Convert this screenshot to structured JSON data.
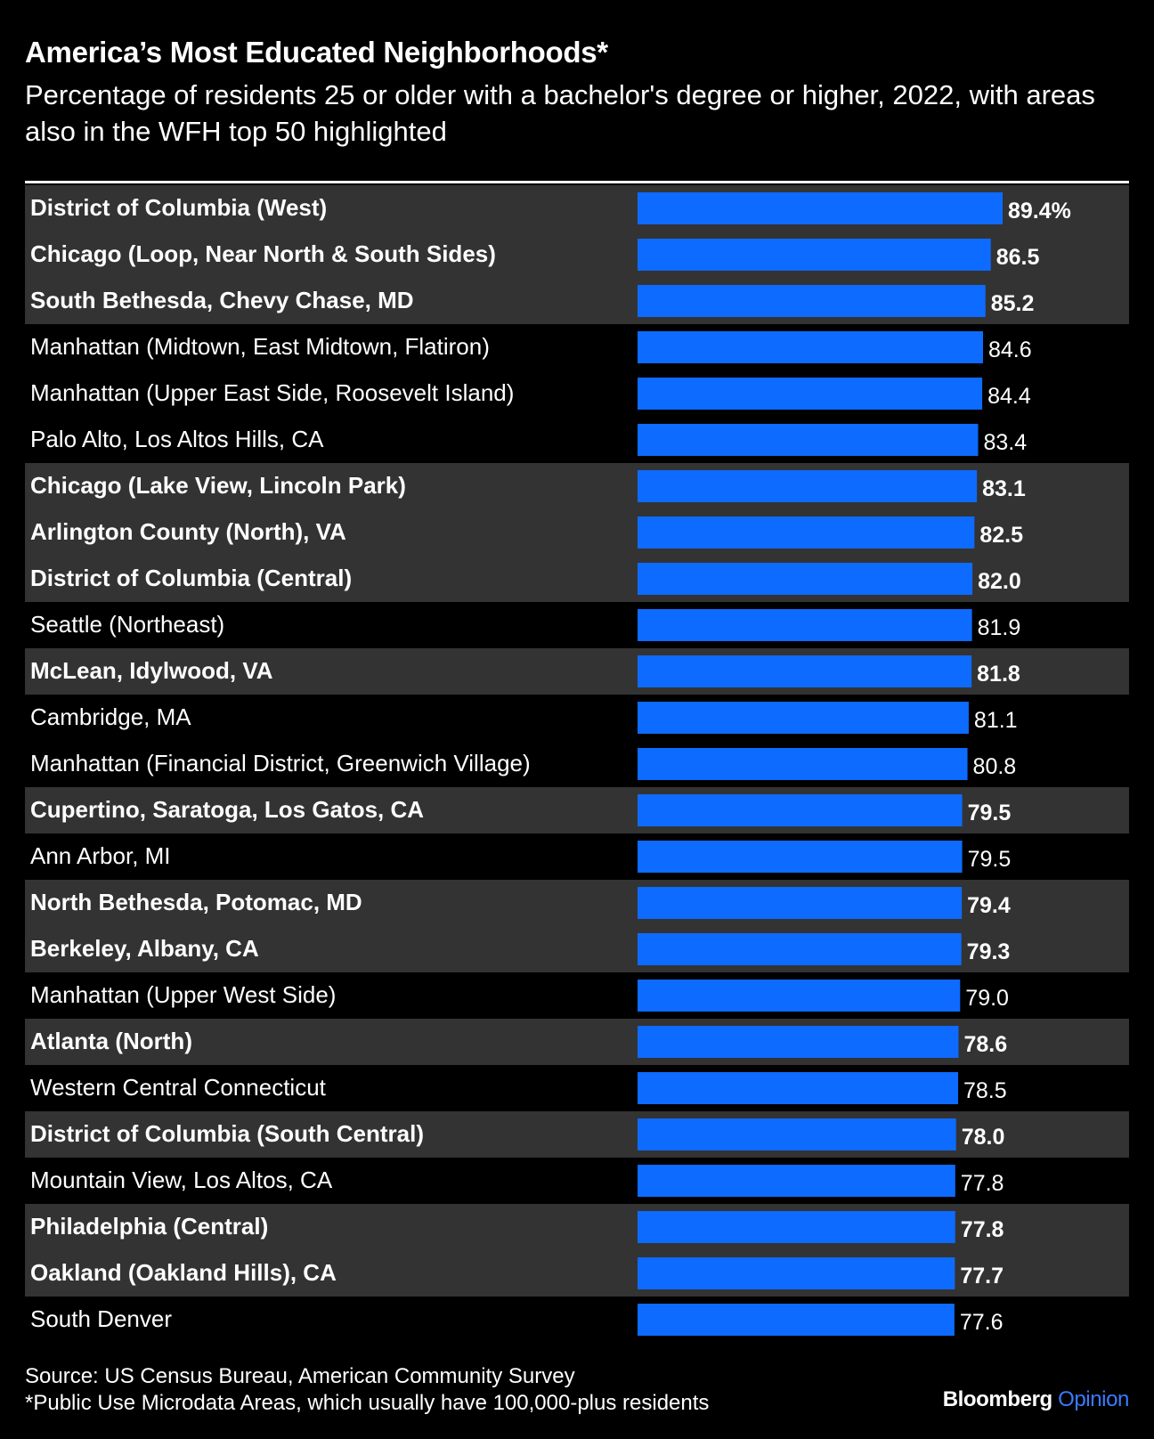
{
  "header": {
    "title": "America’s Most Educated Neighborhoods*",
    "subtitle": "Percentage of residents 25 or older with a bachelor's degree or higher, 2022, with areas also in the WFH top 50 highlighted"
  },
  "footer": {
    "source": "Source: US Census Bureau, American Community Survey",
    "note": "*Public Use Microdata Areas, which usually have 100,000-plus residents"
  },
  "brand": {
    "name": "Bloomberg",
    "section": "Opinion"
  },
  "colors": {
    "bar": "#0d6bff",
    "highlight_row": "#333333",
    "background": "#000000",
    "text": "#ffffff"
  },
  "chart_data": {
    "type": "bar",
    "orientation": "horizontal",
    "unit_suffix_first": "%",
    "xlim": [
      0,
      89.4
    ],
    "categories": [
      "District of Columbia (West)",
      "Chicago (Loop, Near North & South Sides)",
      "South Bethesda, Chevy Chase, MD",
      "Manhattan (Midtown, East Midtown, Flatiron)",
      "Manhattan (Upper East Side, Roosevelt Island)",
      "Palo Alto, Los Altos Hills, CA",
      "Chicago (Lake View, Lincoln Park)",
      "Arlington County (North), VA",
      "District of Columbia (Central)",
      "Seattle (Northeast)",
      "McLean, Idylwood, VA",
      "Cambridge, MA",
      "Manhattan (Financial District, Greenwich Village)",
      "Cupertino, Saratoga, Los Gatos, CA",
      "Ann Arbor, MI",
      "North Bethesda, Potomac, MD",
      "Berkeley, Albany, CA",
      "Manhattan (Upper West Side)",
      "Atlanta (North)",
      "Western Central Connecticut",
      "District of Columbia (South Central)",
      "Mountain View, Los Altos, CA",
      "Philadelphia (Central)",
      "Oakland (Oakland Hills), CA",
      "South Denver"
    ],
    "values": [
      89.4,
      86.5,
      85.2,
      84.6,
      84.4,
      83.4,
      83.1,
      82.5,
      82.0,
      81.9,
      81.8,
      81.1,
      80.8,
      79.5,
      79.5,
      79.4,
      79.3,
      79.0,
      78.6,
      78.5,
      78.0,
      77.8,
      77.8,
      77.7,
      77.6
    ],
    "labels": [
      "89.4%",
      "86.5",
      "85.2",
      "84.6",
      "84.4",
      "83.4",
      "83.1",
      "82.5",
      "82.0",
      "81.9",
      "81.8",
      "81.1",
      "80.8",
      "79.5",
      "79.5",
      "79.4",
      "79.3",
      "79.0",
      "78.6",
      "78.5",
      "78.0",
      "77.8",
      "77.8",
      "77.7",
      "77.6"
    ],
    "wfh_top50_highlighted": [
      true,
      true,
      true,
      false,
      false,
      false,
      true,
      true,
      true,
      false,
      true,
      false,
      false,
      true,
      false,
      true,
      true,
      false,
      true,
      false,
      true,
      false,
      true,
      true,
      false
    ]
  }
}
